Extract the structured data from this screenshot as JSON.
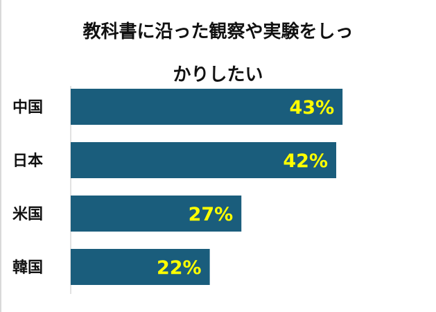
{
  "chart_data": {
    "type": "bar",
    "orientation": "horizontal",
    "title_line1": "教科書に沿った観察や実験をしっ",
    "title_line2": "かりしたい",
    "categories": [
      "中国",
      "日本",
      "米国",
      "韓国"
    ],
    "values": [
      43,
      42,
      27,
      22
    ],
    "value_labels": [
      "43%",
      "42%",
      "27%",
      "22%"
    ],
    "xlim": [
      0,
      50
    ],
    "grid": false,
    "legend": "none"
  },
  "colors": {
    "bar": "#1a5d7c",
    "value_label": "#ffff00",
    "axis_line": "#d9d9d9"
  }
}
